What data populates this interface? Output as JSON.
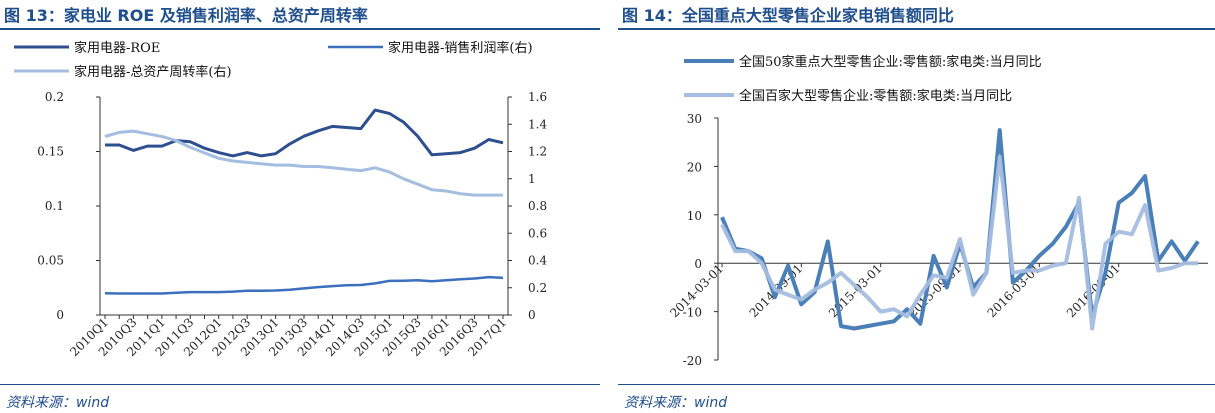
{
  "footer": {
    "source": "资料来源：wind"
  },
  "chart_data": [
    {
      "type": "line",
      "figure_label": "图 13：家电业 ROE 及销售利润率、总资产周转率",
      "title": "家电业 ROE 及销售利润率、总资产周转率",
      "categories": [
        "2010Q1",
        "2010Q2",
        "2010Q3",
        "2010Q4",
        "2011Q1",
        "2011Q2",
        "2011Q3",
        "2011Q4",
        "2012Q1",
        "2012Q2",
        "2012Q3",
        "2012Q4",
        "2013Q1",
        "2013Q2",
        "2013Q3",
        "2013Q4",
        "2014Q1",
        "2014Q2",
        "2014Q3",
        "2014Q4",
        "2015Q1",
        "2015Q2",
        "2015Q3",
        "2015Q4",
        "2016Q1",
        "2016Q2",
        "2016Q3",
        "2016Q4",
        "2017Q1"
      ],
      "tick_labels": [
        "2010Q1",
        "2010Q3",
        "2011Q1",
        "2011Q3",
        "2012Q1",
        "2012Q3",
        "2013Q1",
        "2013Q3",
        "2014Q1",
        "2014Q3",
        "2015Q1",
        "2015Q3",
        "2016Q1",
        "2016Q3",
        "2017Q1"
      ],
      "ylim_left": [
        0,
        0.2
      ],
      "yticks_left": [
        "0",
        "0.05",
        "0.1",
        "0.15",
        "0.2"
      ],
      "ylim_right": [
        0,
        1.6
      ],
      "yticks_right": [
        "0",
        "0.2",
        "0.4",
        "0.6",
        "0.8",
        "1",
        "1.2",
        "1.4",
        "1.6"
      ],
      "grid": false,
      "legend_position": "top",
      "series": [
        {
          "name": "家用电器-ROE",
          "axis": "left",
          "color": "#2e4f8f",
          "width": 3,
          "values": [
            0.156,
            0.156,
            0.151,
            0.155,
            0.155,
            0.16,
            0.159,
            0.153,
            0.149,
            0.146,
            0.149,
            0.146,
            0.148,
            0.157,
            0.164,
            0.169,
            0.173,
            0.172,
            0.171,
            0.188,
            0.185,
            0.177,
            0.164,
            0.147,
            0.148,
            0.149,
            0.153,
            0.161,
            0.158
          ]
        },
        {
          "name": "家用电器-销售利润率(右)",
          "axis": "right",
          "color": "#3d6fbf",
          "width": 2.5,
          "values": [
            0.16,
            0.158,
            0.158,
            0.158,
            0.158,
            0.163,
            0.168,
            0.168,
            0.168,
            0.172,
            0.178,
            0.178,
            0.18,
            0.185,
            0.195,
            0.205,
            0.212,
            0.218,
            0.22,
            0.232,
            0.25,
            0.252,
            0.255,
            0.248,
            0.255,
            0.262,
            0.268,
            0.278,
            0.272
          ]
        },
        {
          "name": "家用电器-总资产周转率(右)",
          "axis": "right",
          "color": "#a4bde0",
          "width": 3,
          "values": [
            1.31,
            1.34,
            1.35,
            1.33,
            1.31,
            1.28,
            1.23,
            1.19,
            1.15,
            1.13,
            1.12,
            1.11,
            1.1,
            1.1,
            1.09,
            1.09,
            1.08,
            1.07,
            1.06,
            1.08,
            1.05,
            1.0,
            0.96,
            0.92,
            0.91,
            0.89,
            0.88,
            0.88,
            0.88
          ]
        }
      ]
    },
    {
      "type": "line",
      "figure_label": "图 14：全国重点大型零售企业家电销售额同比",
      "title": "全国重点大型零售企业家电销售额同比",
      "x": [
        "2014-03",
        "2014-04",
        "2014-05",
        "2014-06",
        "2014-07",
        "2014-08",
        "2014-09",
        "2014-10",
        "2014-11",
        "2014-12",
        "2015-01",
        "2015-02",
        "2015-03",
        "2015-04",
        "2015-05",
        "2015-06",
        "2015-07",
        "2015-08",
        "2015-09",
        "2015-10",
        "2015-11",
        "2015-12",
        "2016-01",
        "2016-02",
        "2016-03",
        "2016-04",
        "2016-05",
        "2016-06",
        "2016-07",
        "2016-08",
        "2016-09",
        "2016-10",
        "2016-11",
        "2016-12",
        "2017-01",
        "2017-02",
        "2017-03"
      ],
      "tick_labels": [
        "2014-03-01",
        "2014-09-01",
        "2015-03-01",
        "2015-09-01",
        "2016-03-01",
        "2016-09-01"
      ],
      "ylim": [
        -20,
        30
      ],
      "yticks": [
        "-20",
        "-10",
        "0",
        "10",
        "20",
        "30"
      ],
      "grid": false,
      "legend_position": "top",
      "series": [
        {
          "name": "全国50家重点大型零售企业:零售额:家电类:当月同比",
          "color": "#4a7fb8",
          "width": 4,
          "values": [
            9.5,
            3,
            2.5,
            1,
            -7,
            -0.5,
            -8.5,
            -6,
            4.5,
            -13,
            -13.5,
            -13,
            -12.5,
            -12,
            -9.5,
            -12.5,
            1.5,
            -5,
            4,
            -5,
            -2,
            27.5,
            -4,
            -1.5,
            1.5,
            4,
            7.5,
            12.5,
            -11,
            -2,
            12.5,
            14.5,
            18,
            0.5,
            4.5,
            0.5,
            4.5
          ]
        },
        {
          "name": "全国百家大型零售企业:零售额:家电类:当月同比",
          "color": "#a4bde0",
          "width": 4,
          "values": [
            8,
            2.5,
            2.5,
            0,
            -5.5,
            -6.5,
            -7.5,
            -5.5,
            -4,
            -2,
            -4.5,
            -7,
            -10,
            -9.5,
            -11,
            -6.5,
            -2.5,
            -3,
            5,
            -6.5,
            -2,
            22,
            -2,
            -1.5,
            -1.5,
            -0.5,
            0,
            13.5,
            -13.5,
            4,
            6.5,
            6,
            12,
            -1.5,
            -1,
            0,
            0
          ]
        }
      ]
    }
  ]
}
